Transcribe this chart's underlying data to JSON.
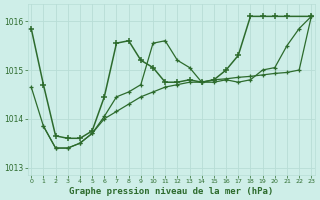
{
  "title": "Graphe pression niveau de la mer (hPa)",
  "background_color": "#ceeee8",
  "grid_color": "#b8ddd6",
  "line_color": "#2d6b2d",
  "ylim": [
    1012.85,
    1016.35
  ],
  "xlim": [
    -0.3,
    23.3
  ],
  "yticks": [
    1013,
    1014,
    1015,
    1016
  ],
  "xticks": [
    0,
    1,
    2,
    3,
    4,
    5,
    6,
    7,
    8,
    9,
    10,
    11,
    12,
    13,
    14,
    15,
    16,
    17,
    18,
    19,
    20,
    21,
    22,
    23
  ],
  "series": [
    {
      "x": [
        0,
        1,
        2,
        3,
        4,
        5,
        6,
        7,
        8,
        9,
        10,
        11,
        12,
        13,
        14,
        15,
        16,
        17,
        18,
        19,
        20,
        21,
        23
      ],
      "y": [
        1015.85,
        1014.7,
        1013.65,
        1013.6,
        1013.6,
        1013.75,
        1014.45,
        1015.55,
        1015.6,
        1015.2,
        1015.05,
        1014.75,
        1014.75,
        1014.8,
        1014.75,
        1014.8,
        1015.0,
        1015.3,
        1016.1,
        1016.1,
        1016.1,
        1016.1,
        1016.1
      ],
      "lw": 1.1,
      "ms": 4
    },
    {
      "x": [
        1,
        2,
        3,
        4,
        5,
        6,
        7,
        8,
        9,
        10,
        11,
        12,
        13,
        14,
        15,
        16,
        17,
        18,
        19,
        20,
        21,
        22,
        23
      ],
      "y": [
        1013.85,
        1013.4,
        1013.4,
        1013.5,
        1013.7,
        1014.05,
        1014.45,
        1014.55,
        1014.7,
        1015.55,
        1015.6,
        1015.2,
        1015.05,
        1014.75,
        1014.75,
        1014.8,
        1014.75,
        1014.8,
        1015.0,
        1015.05,
        1015.5,
        1015.85,
        1016.1
      ],
      "lw": 0.9,
      "ms": 3.5
    },
    {
      "x": [
        0,
        1,
        2,
        3,
        4,
        5,
        6,
        7,
        8,
        9,
        10,
        11,
        12,
        13,
        14,
        15,
        16,
        17,
        18,
        19,
        20,
        21,
        22,
        23
      ],
      "y": [
        1014.65,
        1013.85,
        1013.4,
        1013.4,
        1013.5,
        1013.7,
        1014.0,
        1014.15,
        1014.3,
        1014.45,
        1014.55,
        1014.65,
        1014.7,
        1014.75,
        1014.75,
        1014.8,
        1014.82,
        1014.85,
        1014.87,
        1014.9,
        1014.93,
        1014.95,
        1015.0,
        1016.1
      ],
      "lw": 0.9,
      "ms": 3.5
    }
  ]
}
